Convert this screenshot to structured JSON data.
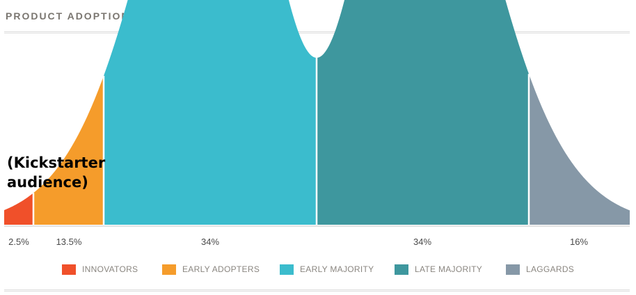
{
  "title": "PRODUCT ADOPTION LIFE CYCLE",
  "annotation_line1": "(Kickstarter",
  "annotation_line2": "audience)",
  "chart_data": {
    "type": "area",
    "title": "PRODUCT ADOPTION LIFE CYCLE",
    "segments": [
      {
        "name": "INNOVATORS",
        "percent_label": "2.5%",
        "value": 2.5,
        "color": "#f0502a"
      },
      {
        "name": "EARLY ADOPTERS",
        "percent_label": "13.5%",
        "value": 13.5,
        "color": "#f59c2b"
      },
      {
        "name": "EARLY MAJORITY",
        "percent_label": "34%",
        "value": 34,
        "color": "#3bbccd"
      },
      {
        "name": "LATE MAJORITY",
        "percent_label": "34%",
        "value": 34,
        "color": "#3e979e"
      },
      {
        "name": "LAGGARDS",
        "percent_label": "16%",
        "value": 16,
        "color": "#8698a7"
      }
    ],
    "legend_position": "bottom",
    "grid": false
  }
}
